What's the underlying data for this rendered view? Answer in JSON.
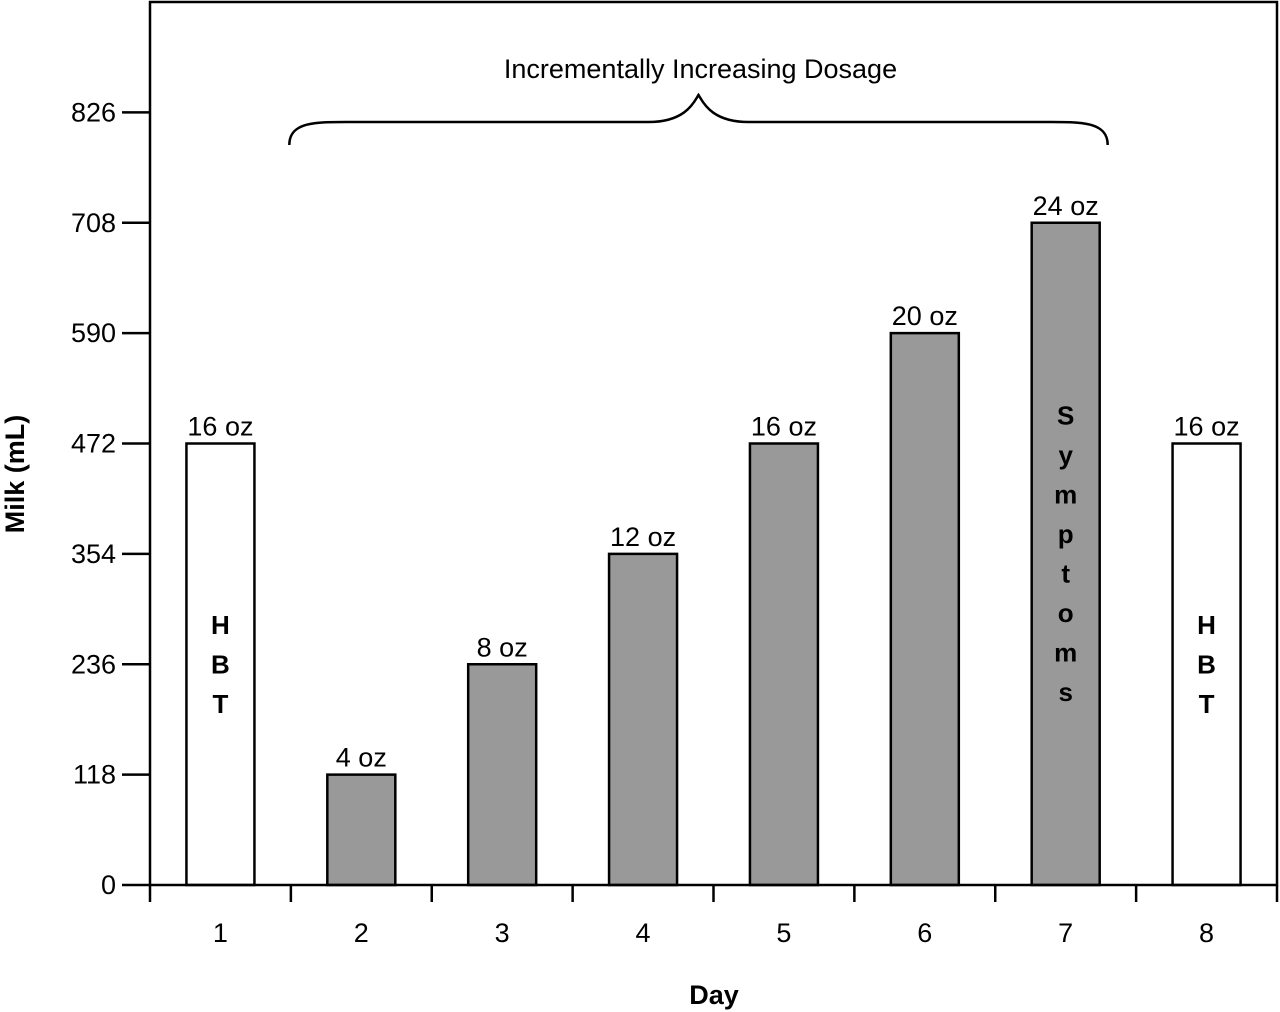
{
  "chart_data": {
    "type": "bar",
    "title": "",
    "xlabel": "Day",
    "ylabel": "Milk (mL)",
    "ylim": [
      0,
      944
    ],
    "yticks": [
      0,
      118,
      236,
      354,
      472,
      590,
      708,
      826
    ],
    "categories": [
      "1",
      "2",
      "3",
      "4",
      "5",
      "6",
      "7",
      "8"
    ],
    "values": [
      472,
      118,
      236,
      354,
      472,
      590,
      708,
      472
    ],
    "data_labels": [
      "16 oz",
      "4 oz",
      "8 oz",
      "12 oz",
      "16 oz",
      "20 oz",
      "24 oz",
      "16 oz"
    ],
    "bar_text": [
      "HBT",
      "",
      "",
      "",
      "",
      "",
      "Symptoms",
      "HBT"
    ],
    "bar_fill": [
      "#ffffff",
      "#999999",
      "#999999",
      "#999999",
      "#999999",
      "#999999",
      "#999999",
      "#ffffff"
    ],
    "bar_stroke": "#000000",
    "grid": false,
    "legend": "none",
    "annotations": [
      {
        "text": "Incrementally Increasing Dosage",
        "type": "brace",
        "span_categories": [
          "2",
          "7"
        ]
      }
    ]
  }
}
